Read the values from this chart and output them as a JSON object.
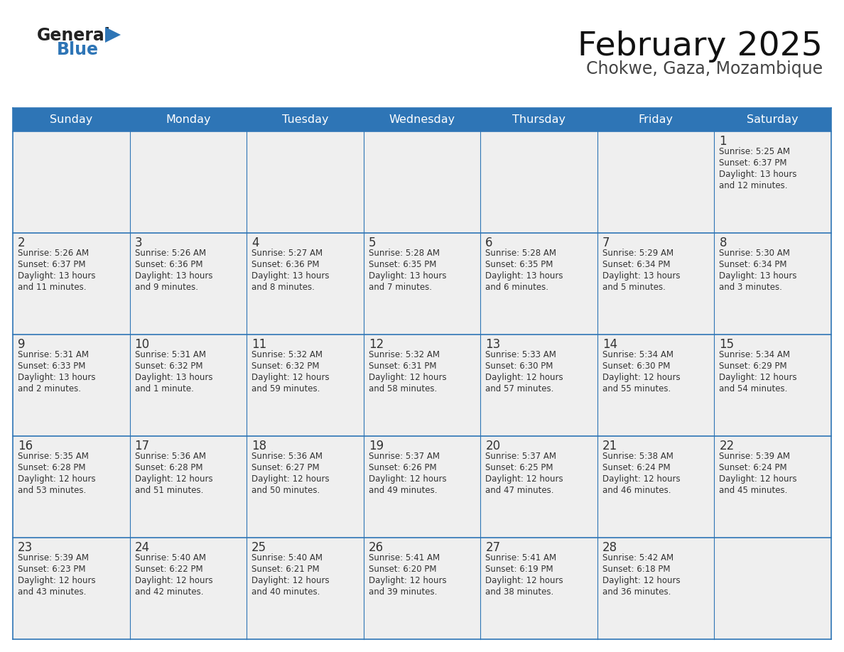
{
  "title": "February 2025",
  "subtitle": "Chokwe, Gaza, Mozambique",
  "header_bg": "#2E75B6",
  "header_text_color": "#FFFFFF",
  "cell_bg": "#EFEFEF",
  "empty_cell_bg": "#F5F5F5",
  "day_number_color": "#333333",
  "text_color": "#333333",
  "border_color": "#2E75B6",
  "days_of_week": [
    "Sunday",
    "Monday",
    "Tuesday",
    "Wednesday",
    "Thursday",
    "Friday",
    "Saturday"
  ],
  "weeks": [
    [
      {
        "day": null,
        "info": null
      },
      {
        "day": null,
        "info": null
      },
      {
        "day": null,
        "info": null
      },
      {
        "day": null,
        "info": null
      },
      {
        "day": null,
        "info": null
      },
      {
        "day": null,
        "info": null
      },
      {
        "day": 1,
        "info": "Sunrise: 5:25 AM\nSunset: 6:37 PM\nDaylight: 13 hours\nand 12 minutes."
      }
    ],
    [
      {
        "day": 2,
        "info": "Sunrise: 5:26 AM\nSunset: 6:37 PM\nDaylight: 13 hours\nand 11 minutes."
      },
      {
        "day": 3,
        "info": "Sunrise: 5:26 AM\nSunset: 6:36 PM\nDaylight: 13 hours\nand 9 minutes."
      },
      {
        "day": 4,
        "info": "Sunrise: 5:27 AM\nSunset: 6:36 PM\nDaylight: 13 hours\nand 8 minutes."
      },
      {
        "day": 5,
        "info": "Sunrise: 5:28 AM\nSunset: 6:35 PM\nDaylight: 13 hours\nand 7 minutes."
      },
      {
        "day": 6,
        "info": "Sunrise: 5:28 AM\nSunset: 6:35 PM\nDaylight: 13 hours\nand 6 minutes."
      },
      {
        "day": 7,
        "info": "Sunrise: 5:29 AM\nSunset: 6:34 PM\nDaylight: 13 hours\nand 5 minutes."
      },
      {
        "day": 8,
        "info": "Sunrise: 5:30 AM\nSunset: 6:34 PM\nDaylight: 13 hours\nand 3 minutes."
      }
    ],
    [
      {
        "day": 9,
        "info": "Sunrise: 5:31 AM\nSunset: 6:33 PM\nDaylight: 13 hours\nand 2 minutes."
      },
      {
        "day": 10,
        "info": "Sunrise: 5:31 AM\nSunset: 6:32 PM\nDaylight: 13 hours\nand 1 minute."
      },
      {
        "day": 11,
        "info": "Sunrise: 5:32 AM\nSunset: 6:32 PM\nDaylight: 12 hours\nand 59 minutes."
      },
      {
        "day": 12,
        "info": "Sunrise: 5:32 AM\nSunset: 6:31 PM\nDaylight: 12 hours\nand 58 minutes."
      },
      {
        "day": 13,
        "info": "Sunrise: 5:33 AM\nSunset: 6:30 PM\nDaylight: 12 hours\nand 57 minutes."
      },
      {
        "day": 14,
        "info": "Sunrise: 5:34 AM\nSunset: 6:30 PM\nDaylight: 12 hours\nand 55 minutes."
      },
      {
        "day": 15,
        "info": "Sunrise: 5:34 AM\nSunset: 6:29 PM\nDaylight: 12 hours\nand 54 minutes."
      }
    ],
    [
      {
        "day": 16,
        "info": "Sunrise: 5:35 AM\nSunset: 6:28 PM\nDaylight: 12 hours\nand 53 minutes."
      },
      {
        "day": 17,
        "info": "Sunrise: 5:36 AM\nSunset: 6:28 PM\nDaylight: 12 hours\nand 51 minutes."
      },
      {
        "day": 18,
        "info": "Sunrise: 5:36 AM\nSunset: 6:27 PM\nDaylight: 12 hours\nand 50 minutes."
      },
      {
        "day": 19,
        "info": "Sunrise: 5:37 AM\nSunset: 6:26 PM\nDaylight: 12 hours\nand 49 minutes."
      },
      {
        "day": 20,
        "info": "Sunrise: 5:37 AM\nSunset: 6:25 PM\nDaylight: 12 hours\nand 47 minutes."
      },
      {
        "day": 21,
        "info": "Sunrise: 5:38 AM\nSunset: 6:24 PM\nDaylight: 12 hours\nand 46 minutes."
      },
      {
        "day": 22,
        "info": "Sunrise: 5:39 AM\nSunset: 6:24 PM\nDaylight: 12 hours\nand 45 minutes."
      }
    ],
    [
      {
        "day": 23,
        "info": "Sunrise: 5:39 AM\nSunset: 6:23 PM\nDaylight: 12 hours\nand 43 minutes."
      },
      {
        "day": 24,
        "info": "Sunrise: 5:40 AM\nSunset: 6:22 PM\nDaylight: 12 hours\nand 42 minutes."
      },
      {
        "day": 25,
        "info": "Sunrise: 5:40 AM\nSunset: 6:21 PM\nDaylight: 12 hours\nand 40 minutes."
      },
      {
        "day": 26,
        "info": "Sunrise: 5:41 AM\nSunset: 6:20 PM\nDaylight: 12 hours\nand 39 minutes."
      },
      {
        "day": 27,
        "info": "Sunrise: 5:41 AM\nSunset: 6:19 PM\nDaylight: 12 hours\nand 38 minutes."
      },
      {
        "day": 28,
        "info": "Sunrise: 5:42 AM\nSunset: 6:18 PM\nDaylight: 12 hours\nand 36 minutes."
      },
      {
        "day": null,
        "info": null
      }
    ]
  ]
}
